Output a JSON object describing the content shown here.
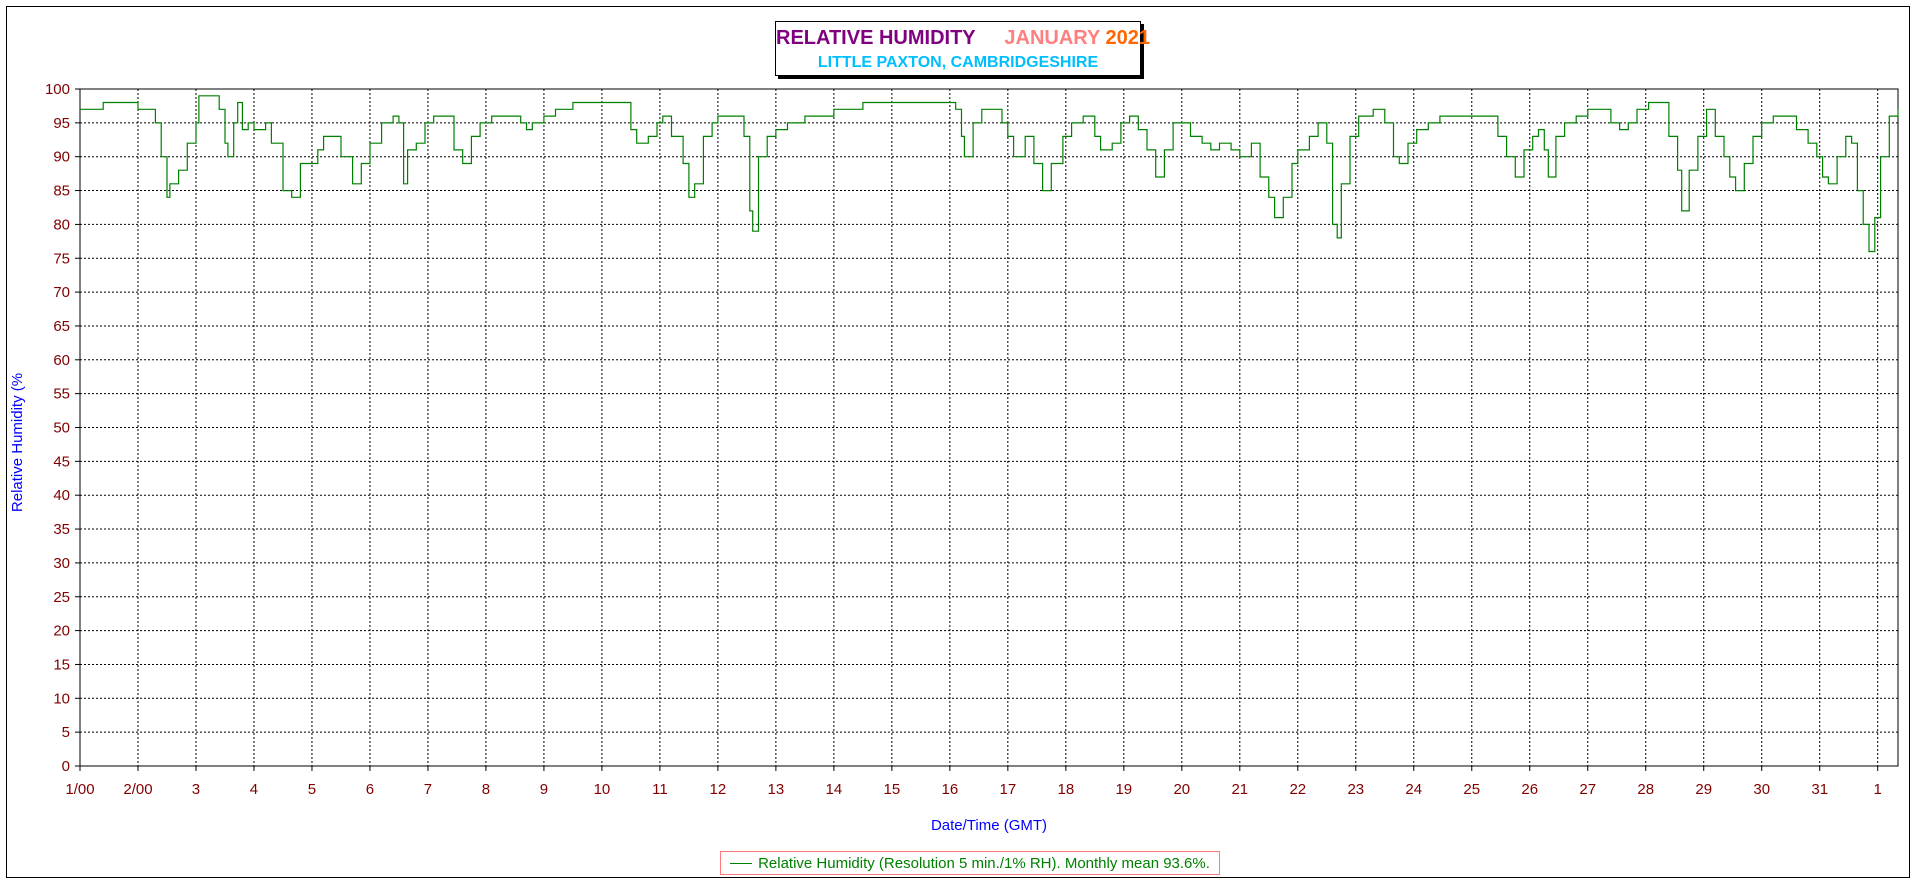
{
  "chart_data": {
    "type": "line",
    "title": {
      "main": "RELATIVE HUMIDITY",
      "month": "JANUARY",
      "year": "2021",
      "location": "LITTLE PAXTON, CAMBRIDGESHIRE"
    },
    "xlabel": "Date/Time (GMT)",
    "ylabel": "Relative Humidity (%",
    "x_ticks": [
      "1/00",
      "2/00",
      "3",
      "4",
      "5",
      "6",
      "7",
      "8",
      "9",
      "10",
      "11",
      "12",
      "13",
      "14",
      "15",
      "16",
      "17",
      "18",
      "19",
      "20",
      "21",
      "22",
      "23",
      "24",
      "25",
      "26",
      "27",
      "28",
      "29",
      "30",
      "31",
      "1"
    ],
    "x_range_days": [
      1,
      32.35
    ],
    "ylim": [
      0,
      100
    ],
    "y_ticks": [
      0,
      5,
      10,
      15,
      20,
      25,
      30,
      35,
      40,
      45,
      50,
      55,
      60,
      65,
      70,
      75,
      80,
      85,
      90,
      95,
      100
    ],
    "grid": true,
    "legend_position": "bottom-center",
    "colors": {
      "series": "#008000",
      "axis_text": "#800000",
      "axis_title": "#0000ff",
      "title_main": "#800080",
      "title_month": "#ff7f7f",
      "title_year": "#ff6600",
      "title_location": "#00bfff",
      "legend_border": "#ff7a7a"
    },
    "series": [
      {
        "name": "Relative Humidity (Resolution 5 min./1% RH). Monthly mean 93.6%.",
        "points": [
          [
            1.0,
            97
          ],
          [
            1.4,
            98
          ],
          [
            1.9,
            98
          ],
          [
            2.0,
            97
          ],
          [
            2.2,
            97
          ],
          [
            2.3,
            95
          ],
          [
            2.4,
            90
          ],
          [
            2.5,
            84
          ],
          [
            2.55,
            86
          ],
          [
            2.7,
            88
          ],
          [
            2.85,
            92
          ],
          [
            3.0,
            95
          ],
          [
            3.05,
            99
          ],
          [
            3.35,
            99
          ],
          [
            3.4,
            97
          ],
          [
            3.5,
            92
          ],
          [
            3.55,
            90
          ],
          [
            3.65,
            95
          ],
          [
            3.72,
            98
          ],
          [
            3.8,
            94
          ],
          [
            3.9,
            95
          ],
          [
            4.0,
            94
          ],
          [
            4.2,
            95
          ],
          [
            4.3,
            92
          ],
          [
            4.5,
            85
          ],
          [
            4.65,
            84
          ],
          [
            4.8,
            89
          ],
          [
            5.0,
            89
          ],
          [
            5.1,
            91
          ],
          [
            5.2,
            93
          ],
          [
            5.4,
            93
          ],
          [
            5.5,
            90
          ],
          [
            5.7,
            86
          ],
          [
            5.85,
            89
          ],
          [
            6.0,
            92
          ],
          [
            6.2,
            95
          ],
          [
            6.4,
            96
          ],
          [
            6.5,
            95
          ],
          [
            6.58,
            86
          ],
          [
            6.65,
            91
          ],
          [
            6.8,
            92
          ],
          [
            6.95,
            95
          ],
          [
            7.1,
            96
          ],
          [
            7.3,
            96
          ],
          [
            7.45,
            91
          ],
          [
            7.6,
            89
          ],
          [
            7.75,
            93
          ],
          [
            7.9,
            95
          ],
          [
            8.1,
            96
          ],
          [
            8.4,
            96
          ],
          [
            8.6,
            95
          ],
          [
            8.7,
            94
          ],
          [
            8.8,
            95
          ],
          [
            9.0,
            96
          ],
          [
            9.2,
            97
          ],
          [
            9.5,
            98
          ],
          [
            10.0,
            98
          ],
          [
            10.4,
            98
          ],
          [
            10.5,
            94
          ],
          [
            10.6,
            92
          ],
          [
            10.8,
            93
          ],
          [
            10.95,
            95
          ],
          [
            11.05,
            96
          ],
          [
            11.2,
            93
          ],
          [
            11.4,
            89
          ],
          [
            11.5,
            84
          ],
          [
            11.6,
            86
          ],
          [
            11.75,
            93
          ],
          [
            11.9,
            95
          ],
          [
            12.0,
            96
          ],
          [
            12.3,
            96
          ],
          [
            12.45,
            93
          ],
          [
            12.55,
            82
          ],
          [
            12.6,
            79
          ],
          [
            12.7,
            90
          ],
          [
            12.85,
            93
          ],
          [
            13.0,
            94
          ],
          [
            13.2,
            95
          ],
          [
            13.5,
            96
          ],
          [
            14.0,
            97
          ],
          [
            14.5,
            98
          ],
          [
            15.0,
            98
          ],
          [
            15.5,
            98
          ],
          [
            15.9,
            98
          ],
          [
            16.1,
            97
          ],
          [
            16.2,
            93
          ],
          [
            16.25,
            90
          ],
          [
            16.4,
            95
          ],
          [
            16.55,
            97
          ],
          [
            16.75,
            97
          ],
          [
            16.9,
            95
          ],
          [
            17.0,
            93
          ],
          [
            17.1,
            90
          ],
          [
            17.3,
            93
          ],
          [
            17.45,
            89
          ],
          [
            17.6,
            85
          ],
          [
            17.75,
            89
          ],
          [
            17.95,
            93
          ],
          [
            18.1,
            95
          ],
          [
            18.3,
            96
          ],
          [
            18.5,
            93
          ],
          [
            18.6,
            91
          ],
          [
            18.8,
            92
          ],
          [
            18.95,
            95
          ],
          [
            19.1,
            96
          ],
          [
            19.25,
            94
          ],
          [
            19.4,
            91
          ],
          [
            19.55,
            87
          ],
          [
            19.7,
            91
          ],
          [
            19.85,
            95
          ],
          [
            20.0,
            95
          ],
          [
            20.15,
            93
          ],
          [
            20.35,
            92
          ],
          [
            20.5,
            91
          ],
          [
            20.65,
            92
          ],
          [
            20.85,
            91
          ],
          [
            21.0,
            90
          ],
          [
            21.2,
            92
          ],
          [
            21.35,
            87
          ],
          [
            21.5,
            84
          ],
          [
            21.6,
            81
          ],
          [
            21.75,
            84
          ],
          [
            21.9,
            89
          ],
          [
            22.0,
            91
          ],
          [
            22.2,
            93
          ],
          [
            22.35,
            95
          ],
          [
            22.5,
            92
          ],
          [
            22.6,
            80
          ],
          [
            22.68,
            78
          ],
          [
            22.75,
            86
          ],
          [
            22.9,
            93
          ],
          [
            23.05,
            96
          ],
          [
            23.3,
            97
          ],
          [
            23.5,
            95
          ],
          [
            23.65,
            90
          ],
          [
            23.75,
            89
          ],
          [
            23.9,
            92
          ],
          [
            24.05,
            94
          ],
          [
            24.25,
            95
          ],
          [
            24.45,
            96
          ],
          [
            24.65,
            96
          ],
          [
            24.85,
            96
          ],
          [
            25.05,
            96
          ],
          [
            25.25,
            96
          ],
          [
            25.45,
            93
          ],
          [
            25.6,
            90
          ],
          [
            25.75,
            87
          ],
          [
            25.9,
            91
          ],
          [
            26.05,
            93
          ],
          [
            26.15,
            94
          ],
          [
            26.25,
            91
          ],
          [
            26.32,
            87
          ],
          [
            26.45,
            93
          ],
          [
            26.6,
            95
          ],
          [
            26.8,
            96
          ],
          [
            27.0,
            97
          ],
          [
            27.2,
            97
          ],
          [
            27.4,
            95
          ],
          [
            27.55,
            94
          ],
          [
            27.7,
            95
          ],
          [
            27.85,
            97
          ],
          [
            28.05,
            98
          ],
          [
            28.25,
            98
          ],
          [
            28.4,
            93
          ],
          [
            28.55,
            88
          ],
          [
            28.62,
            82
          ],
          [
            28.75,
            88
          ],
          [
            28.9,
            93
          ],
          [
            29.05,
            97
          ],
          [
            29.2,
            93
          ],
          [
            29.35,
            90
          ],
          [
            29.45,
            87
          ],
          [
            29.55,
            85
          ],
          [
            29.7,
            89
          ],
          [
            29.85,
            93
          ],
          [
            30.0,
            95
          ],
          [
            30.2,
            96
          ],
          [
            30.4,
            96
          ],
          [
            30.6,
            94
          ],
          [
            30.8,
            92
          ],
          [
            30.95,
            90
          ],
          [
            31.05,
            87
          ],
          [
            31.15,
            86
          ],
          [
            31.3,
            90
          ],
          [
            31.45,
            93
          ],
          [
            31.55,
            92
          ],
          [
            31.65,
            85
          ],
          [
            31.75,
            80
          ],
          [
            31.85,
            76
          ],
          [
            31.95,
            81
          ],
          [
            32.05,
            90
          ],
          [
            32.2,
            96
          ],
          [
            32.35,
            97
          ]
        ]
      }
    ]
  }
}
